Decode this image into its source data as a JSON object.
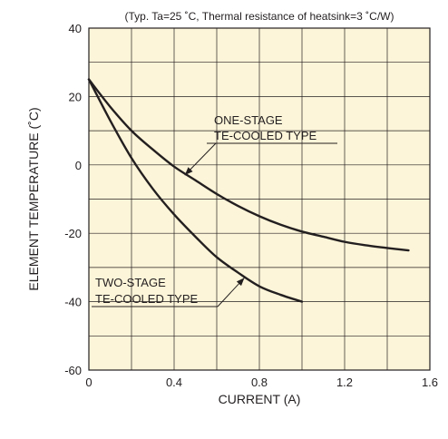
{
  "chart_data": {
    "type": "line",
    "title": "(Typ. Ta=25 ˚C, Thermal resistance of heatsink=3 ˚C/W)",
    "xlabel": "CURRENT (A)",
    "ylabel": "ELEMENT TEMPERATURE (˚C)",
    "xlim": [
      0,
      1.6
    ],
    "ylim": [
      -60,
      40
    ],
    "x_ticks": [
      "0",
      "0.4",
      "0.8",
      "1.2",
      "1.6"
    ],
    "y_ticks": [
      "40",
      "20",
      "0",
      "-20",
      "-40",
      "-60"
    ],
    "grid": true,
    "background": "#fdf5d9",
    "line_color": "#231f20",
    "series": [
      {
        "name": "ONE-STAGE TE-COOLED TYPE",
        "x": [
          0,
          0.1,
          0.2,
          0.3,
          0.4,
          0.5,
          0.6,
          0.7,
          0.8,
          0.9,
          1.0,
          1.1,
          1.2,
          1.3,
          1.4,
          1.5
        ],
        "y": [
          25,
          17,
          10,
          4.5,
          -0.5,
          -4.5,
          -8.5,
          -12,
          -15,
          -17.5,
          -19.5,
          -21,
          -22.5,
          -23.5,
          -24.3,
          -25
        ]
      },
      {
        "name": "TWO-STAGE TE-COOLED TYPE",
        "x": [
          0,
          0.1,
          0.2,
          0.3,
          0.4,
          0.5,
          0.6,
          0.7,
          0.8,
          0.9,
          1.0
        ],
        "y": [
          25,
          13,
          2,
          -7,
          -14.5,
          -21,
          -27,
          -31.5,
          -35.5,
          -38,
          -40
        ]
      }
    ],
    "annotations": [
      {
        "lines": [
          "ONE-STAGE",
          "TE-COOLED TYPE"
        ],
        "series": 0,
        "point": [
          0.45,
          -3
        ]
      },
      {
        "lines": [
          "TWO-STAGE",
          "TE-COOLED TYPE"
        ],
        "series": 1,
        "point": [
          0.73,
          -33
        ]
      }
    ]
  }
}
